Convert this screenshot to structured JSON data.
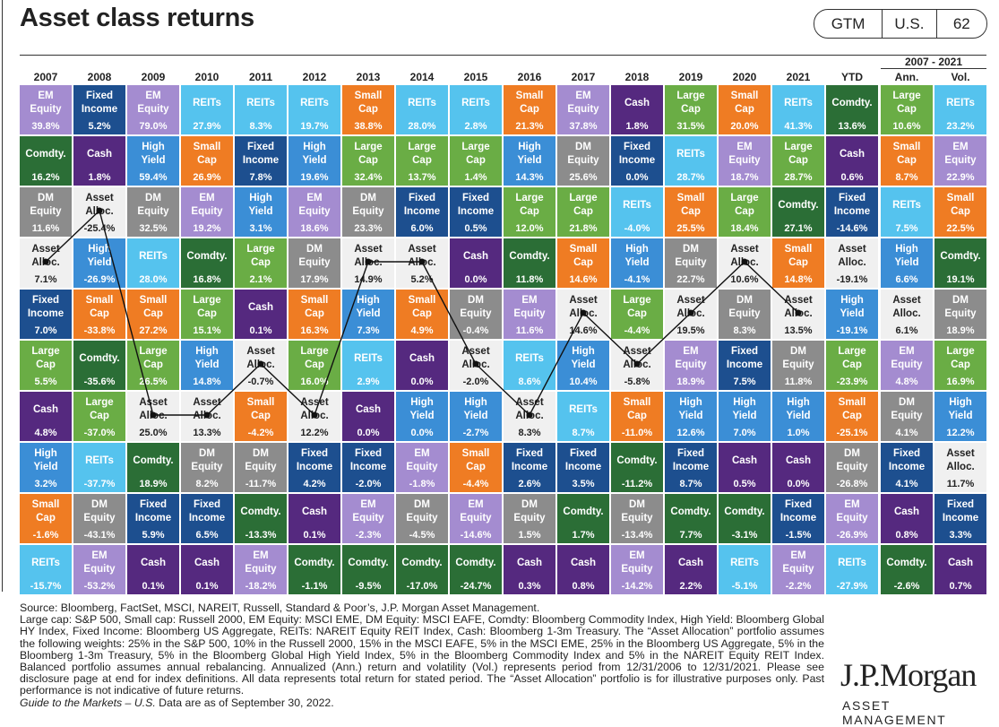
{
  "header": {
    "title": "Asset class returns",
    "badges": [
      "GTM",
      "U.S.",
      "62"
    ]
  },
  "styles": {
    "EM Equity": {
      "fill": "#a48cd0",
      "text": "#ffffff"
    },
    "Fixed Income": {
      "fill": "#1d4f8f",
      "text": "#ffffff"
    },
    "Comdty.": {
      "fill": "#2b6e36",
      "text": "#ffffff"
    },
    "DM Equity": {
      "fill": "#8c8c8c",
      "text": "#ffffff"
    },
    "Asset Alloc.": {
      "fill": "#f0f0f0",
      "text": "#222222"
    },
    "REITs": {
      "fill": "#55c3ee",
      "text": "#ffffff"
    },
    "Small Cap": {
      "fill": "#ef7c23",
      "text": "#ffffff"
    },
    "High Yield": {
      "fill": "#3b8ed6",
      "text": "#ffffff"
    },
    "Cash": {
      "fill": "#55297f",
      "text": "#ffffff"
    },
    "Large Cap": {
      "fill": "#6aad45",
      "text": "#ffffff"
    }
  },
  "table": {
    "annual": [
      {
        "header": "2007",
        "cells": [
          [
            "EM Equity",
            "39.8%"
          ],
          [
            "Comdty.",
            "16.2%"
          ],
          [
            "DM Equity",
            "11.6%"
          ],
          [
            "Asset Alloc.",
            "7.1%"
          ],
          [
            "Fixed Income",
            "7.0%"
          ],
          [
            "Large Cap",
            "5.5%"
          ],
          [
            "Cash",
            "4.8%"
          ],
          [
            "High Yield",
            "3.2%"
          ],
          [
            "Small Cap",
            "-1.6%"
          ],
          [
            "REITs",
            "-15.7%"
          ]
        ]
      },
      {
        "header": "2008",
        "cells": [
          [
            "Fixed Income",
            "5.2%"
          ],
          [
            "Cash",
            "1.8%"
          ],
          [
            "Asset Alloc.",
            "-25.4%"
          ],
          [
            "High Yield",
            "-26.9%"
          ],
          [
            "Small Cap",
            "-33.8%"
          ],
          [
            "Comdty.",
            "-35.6%"
          ],
          [
            "Large Cap",
            "-37.0%"
          ],
          [
            "REITs",
            "-37.7%"
          ],
          [
            "DM Equity",
            "-43.1%"
          ],
          [
            "EM Equity",
            "-53.2%"
          ]
        ]
      },
      {
        "header": "2009",
        "cells": [
          [
            "EM Equity",
            "79.0%"
          ],
          [
            "High Yield",
            "59.4%"
          ],
          [
            "DM Equity",
            "32.5%"
          ],
          [
            "REITs",
            "28.0%"
          ],
          [
            "Small Cap",
            "27.2%"
          ],
          [
            "Large Cap",
            "26.5%"
          ],
          [
            "Asset Alloc.",
            "25.0%"
          ],
          [
            "Comdty.",
            "18.9%"
          ],
          [
            "Fixed Income",
            "5.9%"
          ],
          [
            "Cash",
            "0.1%"
          ]
        ]
      },
      {
        "header": "2010",
        "cells": [
          [
            "REITs",
            "27.9%"
          ],
          [
            "Small Cap",
            "26.9%"
          ],
          [
            "EM Equity",
            "19.2%"
          ],
          [
            "Comdty.",
            "16.8%"
          ],
          [
            "Large Cap",
            "15.1%"
          ],
          [
            "High Yield",
            "14.8%"
          ],
          [
            "Asset Alloc.",
            "13.3%"
          ],
          [
            "DM Equity",
            "8.2%"
          ],
          [
            "Fixed Income",
            "6.5%"
          ],
          [
            "Cash",
            "0.1%"
          ]
        ]
      },
      {
        "header": "2011",
        "cells": [
          [
            "REITs",
            "8.3%"
          ],
          [
            "Fixed Income",
            "7.8%"
          ],
          [
            "High Yield",
            "3.1%"
          ],
          [
            "Large Cap",
            "2.1%"
          ],
          [
            "Cash",
            "0.1%"
          ],
          [
            "Asset Alloc.",
            "-0.7%"
          ],
          [
            "Small Cap",
            "-4.2%"
          ],
          [
            "DM Equity",
            "-11.7%"
          ],
          [
            "Comdty.",
            "-13.3%"
          ],
          [
            "EM Equity",
            "-18.2%"
          ]
        ]
      },
      {
        "header": "2012",
        "cells": [
          [
            "REITs",
            "19.7%"
          ],
          [
            "High Yield",
            "19.6%"
          ],
          [
            "EM Equity",
            "18.6%"
          ],
          [
            "DM Equity",
            "17.9%"
          ],
          [
            "Small Cap",
            "16.3%"
          ],
          [
            "Large Cap",
            "16.0%"
          ],
          [
            "Asset Alloc.",
            "12.2%"
          ],
          [
            "Fixed Income",
            "4.2%"
          ],
          [
            "Cash",
            "0.1%"
          ],
          [
            "Comdty.",
            "-1.1%"
          ]
        ]
      },
      {
        "header": "2013",
        "cells": [
          [
            "Small Cap",
            "38.8%"
          ],
          [
            "Large Cap",
            "32.4%"
          ],
          [
            "DM Equity",
            "23.3%"
          ],
          [
            "Asset Alloc.",
            "14.9%"
          ],
          [
            "High Yield",
            "7.3%"
          ],
          [
            "REITs",
            "2.9%"
          ],
          [
            "Cash",
            "0.0%"
          ],
          [
            "Fixed Income",
            "-2.0%"
          ],
          [
            "EM Equity",
            "-2.3%"
          ],
          [
            "Comdty.",
            "-9.5%"
          ]
        ]
      },
      {
        "header": "2014",
        "cells": [
          [
            "REITs",
            "28.0%"
          ],
          [
            "Large Cap",
            "13.7%"
          ],
          [
            "Fixed Income",
            "6.0%"
          ],
          [
            "Asset Alloc.",
            "5.2%"
          ],
          [
            "Small Cap",
            "4.9%"
          ],
          [
            "Cash",
            "0.0%"
          ],
          [
            "High Yield",
            "0.0%"
          ],
          [
            "EM Equity",
            "-1.8%"
          ],
          [
            "DM Equity",
            "-4.5%"
          ],
          [
            "Comdty.",
            "-17.0%"
          ]
        ]
      },
      {
        "header": "2015",
        "cells": [
          [
            "REITs",
            "2.8%"
          ],
          [
            "Large Cap",
            "1.4%"
          ],
          [
            "Fixed Income",
            "0.5%"
          ],
          [
            "Cash",
            "0.0%"
          ],
          [
            "DM Equity",
            "-0.4%"
          ],
          [
            "Asset Alloc.",
            "-2.0%"
          ],
          [
            "High Yield",
            "-2.7%"
          ],
          [
            "Small Cap",
            "-4.4%"
          ],
          [
            "EM Equity",
            "-14.6%"
          ],
          [
            "Comdty.",
            "-24.7%"
          ]
        ]
      },
      {
        "header": "2016",
        "cells": [
          [
            "Small Cap",
            "21.3%"
          ],
          [
            "High Yield",
            "14.3%"
          ],
          [
            "Large Cap",
            "12.0%"
          ],
          [
            "Comdty.",
            "11.8%"
          ],
          [
            "EM Equity",
            "11.6%"
          ],
          [
            "REITs",
            "8.6%"
          ],
          [
            "Asset Alloc.",
            "8.3%"
          ],
          [
            "Fixed Income",
            "2.6%"
          ],
          [
            "DM Equity",
            "1.5%"
          ],
          [
            "Cash",
            "0.3%"
          ]
        ]
      },
      {
        "header": "2017",
        "cells": [
          [
            "EM Equity",
            "37.8%"
          ],
          [
            "DM Equity",
            "25.6%"
          ],
          [
            "Large Cap",
            "21.8%"
          ],
          [
            "Small Cap",
            "14.6%"
          ],
          [
            "Asset Alloc.",
            "14.6%"
          ],
          [
            "High Yield",
            "10.4%"
          ],
          [
            "REITs",
            "8.7%"
          ],
          [
            "Fixed Income",
            "3.5%"
          ],
          [
            "Comdty.",
            "1.7%"
          ],
          [
            "Cash",
            "0.8%"
          ]
        ]
      },
      {
        "header": "2018",
        "cells": [
          [
            "Cash",
            "1.8%"
          ],
          [
            "Fixed Income",
            "0.0%"
          ],
          [
            "REITs",
            "-4.0%"
          ],
          [
            "High Yield",
            "-4.1%"
          ],
          [
            "Large Cap",
            "-4.4%"
          ],
          [
            "Asset Alloc.",
            "-5.8%"
          ],
          [
            "Small Cap",
            "-11.0%"
          ],
          [
            "Comdty.",
            "-11.2%"
          ],
          [
            "DM Equity",
            "-13.4%"
          ],
          [
            "EM Equity",
            "-14.2%"
          ]
        ]
      },
      {
        "header": "2019",
        "cells": [
          [
            "Large Cap",
            "31.5%"
          ],
          [
            "REITs",
            "28.7%"
          ],
          [
            "Small Cap",
            "25.5%"
          ],
          [
            "DM Equity",
            "22.7%"
          ],
          [
            "Asset Alloc.",
            "19.5%"
          ],
          [
            "EM Equity",
            "18.9%"
          ],
          [
            "High Yield",
            "12.6%"
          ],
          [
            "Fixed Income",
            "8.7%"
          ],
          [
            "Comdty.",
            "7.7%"
          ],
          [
            "Cash",
            "2.2%"
          ]
        ]
      },
      {
        "header": "2020",
        "cells": [
          [
            "Small Cap",
            "20.0%"
          ],
          [
            "EM Equity",
            "18.7%"
          ],
          [
            "Large Cap",
            "18.4%"
          ],
          [
            "Asset Alloc.",
            "10.6%"
          ],
          [
            "DM Equity",
            "8.3%"
          ],
          [
            "Fixed Income",
            "7.5%"
          ],
          [
            "High Yield",
            "7.0%"
          ],
          [
            "Cash",
            "0.5%"
          ],
          [
            "Comdty.",
            "-3.1%"
          ],
          [
            "REITs",
            "-5.1%"
          ]
        ]
      },
      {
        "header": "2021",
        "cells": [
          [
            "REITs",
            "41.3%"
          ],
          [
            "Large Cap",
            "28.7%"
          ],
          [
            "Comdty.",
            "27.1%"
          ],
          [
            "Small Cap",
            "14.8%"
          ],
          [
            "Asset Alloc.",
            "13.5%"
          ],
          [
            "DM Equity",
            "11.8%"
          ],
          [
            "High Yield",
            "1.0%"
          ],
          [
            "Cash",
            "0.0%"
          ],
          [
            "Fixed Income",
            "-1.5%"
          ],
          [
            "EM Equity",
            "-2.2%"
          ]
        ]
      },
      {
        "header": "YTD",
        "cells": [
          [
            "Comdty.",
            "13.6%"
          ],
          [
            "Cash",
            "0.6%"
          ],
          [
            "Fixed Income",
            "-14.6%"
          ],
          [
            "Asset Alloc.",
            "-19.1%"
          ],
          [
            "High Yield",
            "-19.1%"
          ],
          [
            "Large Cap",
            "-23.9%"
          ],
          [
            "Small Cap",
            "-25.1%"
          ],
          [
            "DM Equity",
            "-26.8%"
          ],
          [
            "EM Equity",
            "-26.9%"
          ],
          [
            "REITs",
            "-27.9%"
          ]
        ]
      }
    ],
    "span_label": "2007 - 2021",
    "summary": [
      {
        "header": "Ann.",
        "cells": [
          [
            "Large Cap",
            "10.6%"
          ],
          [
            "Small Cap",
            "8.7%"
          ],
          [
            "REITs",
            "7.5%"
          ],
          [
            "High Yield",
            "6.6%"
          ],
          [
            "Asset Alloc.",
            "6.1%"
          ],
          [
            "EM Equity",
            "4.8%"
          ],
          [
            "DM Equity",
            "4.1%"
          ],
          [
            "Fixed Income",
            "4.1%"
          ],
          [
            "Cash",
            "0.8%"
          ],
          [
            "Comdty.",
            "-2.6%"
          ]
        ]
      },
      {
        "header": "Vol.",
        "cells": [
          [
            "REITs",
            "23.2%"
          ],
          [
            "EM Equity",
            "22.9%"
          ],
          [
            "Small Cap",
            "22.5%"
          ],
          [
            "Comdty.",
            "19.1%"
          ],
          [
            "DM Equity",
            "18.9%"
          ],
          [
            "Large Cap",
            "16.9%"
          ],
          [
            "High Yield",
            "12.2%"
          ],
          [
            "Asset Alloc.",
            "11.7%"
          ],
          [
            "Fixed Income",
            "3.3%"
          ],
          [
            "Cash",
            "0.7%"
          ]
        ]
      }
    ]
  },
  "footer": {
    "source": "Source: Bloomberg, FactSet, MSCI, NAREIT, Russell, Standard & Poor’s, J.P. Morgan Asset Management.",
    "notes": "Large cap: S&P 500, Small cap: Russell 2000, EM Equity: MSCI EME, DM Equity: MSCI EAFE, Comdty: Bloomberg Commodity Index, High Yield: Bloomberg Global HY Index, Fixed Income: Bloomberg US Aggregate, REITs: NAREIT Equity REIT Index, Cash: Bloomberg 1-3m Treasury. The “Asset Allocation” portfolio assumes the following weights: 25% in the S&P 500, 10% in the Russell 2000, 15% in the MSCI EAFE, 5% in the MSCI EME, 25% in the Bloomberg US Aggregate, 5% in the Bloomberg 1-3m Treasury, 5% in the Bloomberg Global High Yield Index, 5% in the Bloomberg Commodity Index and 5% in the NAREIT Equity REIT Index. Balanced portfolio assumes annual rebalancing. Annualized (Ann.) return and volatility (Vol.) represents period from 12/31/2006 to 12/31/2021. Please see disclosure page at end for index definitions. All data represents total return for stated period. The “Asset Allocation” portfolio is for illustrative purposes only. Past performance is not indicative of future returns.",
    "guide": "Guide to the Markets – U.S.",
    "as_of": "Data are as of September 30, 2022.",
    "logo": "J.P.Morgan",
    "logo_sub": "ASSET MANAGEMENT"
  }
}
